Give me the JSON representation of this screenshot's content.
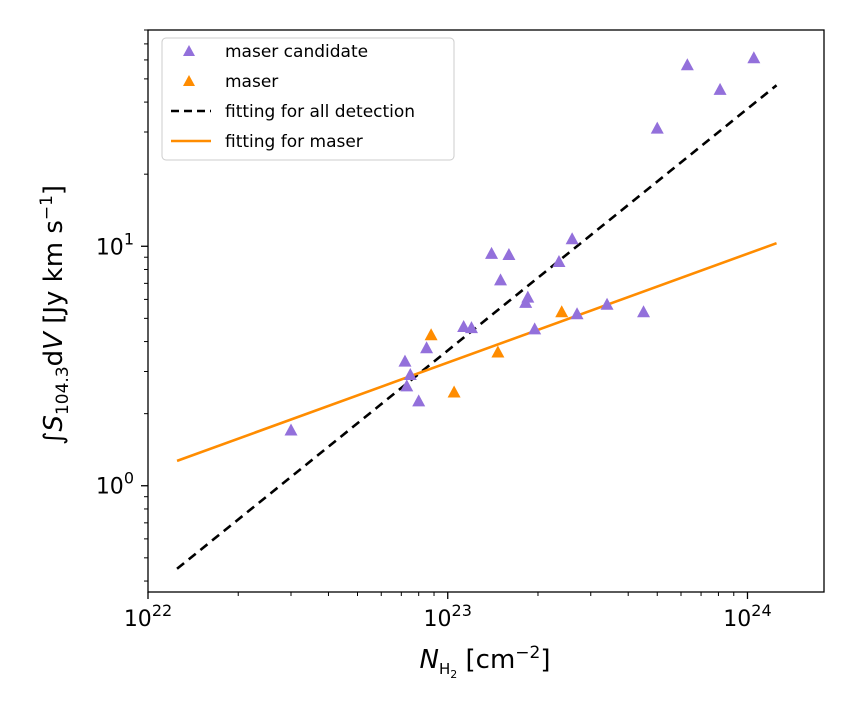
{
  "chart_data": {
    "type": "scatter",
    "xscale": "log",
    "yscale": "log",
    "xlim": [
      1e+22,
      1.8e+24
    ],
    "ylim": [
      0.36,
      80
    ],
    "xlabel": {
      "main": "N",
      "sub": "H",
      "subsub": "2",
      "unit": " [cm",
      "unit_sup": "−2",
      "unit_end": "]"
    },
    "ylabel": {
      "integral": "∫",
      "main": "S",
      "sub": "104.3",
      "mid": "d",
      "var": "V",
      "unit": " [Jy km s",
      "unit_sup": "−1",
      "unit_end": "]"
    },
    "x_ticks": [
      {
        "value": 1e+22,
        "base": "10",
        "exp": "22"
      },
      {
        "value": 1e+23,
        "base": "10",
        "exp": "23"
      },
      {
        "value": 1e+24,
        "base": "10",
        "exp": "24"
      }
    ],
    "y_ticks": [
      {
        "value": 1,
        "base": "10",
        "exp": "0"
      },
      {
        "value": 10,
        "base": "10",
        "exp": "1"
      }
    ],
    "series": [
      {
        "name": "maser candidate",
        "kind": "marker",
        "marker": "triangle",
        "color": "#9370db",
        "points": [
          [
            3e+22,
            1.7
          ],
          [
            7.2e+22,
            3.3
          ],
          [
            7.3e+22,
            2.6
          ],
          [
            7.5e+22,
            2.9
          ],
          [
            8e+22,
            2.25
          ],
          [
            8.5e+22,
            3.75
          ],
          [
            1.13e+23,
            4.6
          ],
          [
            1.2e+23,
            4.55
          ],
          [
            1.4e+23,
            9.3
          ],
          [
            1.5e+23,
            7.2
          ],
          [
            1.6e+23,
            9.2
          ],
          [
            1.82e+23,
            5.8
          ],
          [
            1.85e+23,
            6.1
          ],
          [
            1.95e+23,
            4.5
          ],
          [
            2.35e+23,
            8.6
          ],
          [
            2.6e+23,
            10.7
          ],
          [
            2.7e+23,
            5.2
          ],
          [
            3.4e+23,
            5.7
          ],
          [
            4.5e+23,
            5.3
          ],
          [
            5e+23,
            31
          ],
          [
            6.3e+23,
            57
          ],
          [
            8.1e+23,
            45
          ],
          [
            1.05e+24,
            61
          ]
        ]
      },
      {
        "name": "maser",
        "kind": "marker",
        "marker": "triangle",
        "color": "#ff8c00",
        "points": [
          [
            8.8e+22,
            4.25
          ],
          [
            1.05e+23,
            2.45
          ],
          [
            1.47e+23,
            3.6
          ],
          [
            2.4e+23,
            5.3
          ]
        ]
      },
      {
        "name": "fitting for all detection",
        "kind": "line",
        "dash": "dashed",
        "color": "#000000",
        "points": [
          [
            1.25e+22,
            0.45
          ],
          [
            1.25e+24,
            47
          ]
        ]
      },
      {
        "name": "fitting for maser",
        "kind": "line",
        "dash": "solid",
        "color": "#ff8c00",
        "points": [
          [
            1.25e+22,
            1.27
          ],
          [
            1.25e+24,
            10.3
          ]
        ]
      }
    ],
    "legend": {
      "placement": "upper-left"
    },
    "grid": false
  }
}
